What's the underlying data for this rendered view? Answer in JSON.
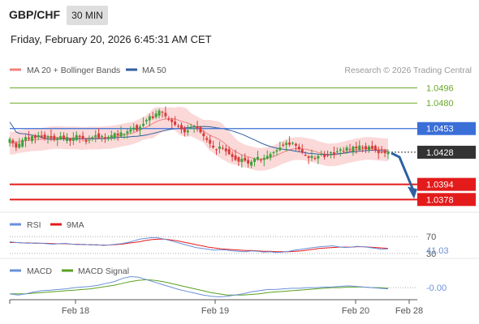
{
  "header": {
    "symbol": "GBP/CHF",
    "timeframe": "30 MIN",
    "timestamp": "Friday, February 20, 2026 6:45:31 AM CET"
  },
  "credit": "Research © 2026 Trading Central",
  "colors": {
    "ma20": "#f08080",
    "band_fill": "#fbd9d9",
    "ma50": "#2f5fa0",
    "resistance": "#6aaa2a",
    "pivot": "#3a6fd8",
    "support": "#e31b1b",
    "current": "#333333",
    "arrow": "#2e5fa2",
    "rsi": "#6a8fd8",
    "rsi_ma": "#e31b1b",
    "macd": "#6a8fd8",
    "macd_signal": "#5aa020"
  },
  "chart_data": [
    {
      "type": "candlestick",
      "name": "price",
      "legend": [
        {
          "label": "MA 20 + Bollinger Bands",
          "color": "#f08080"
        },
        {
          "label": "MA 50",
          "color": "#2f5fa0"
        }
      ],
      "ylim": [
        1.0368,
        1.0505
      ],
      "x_ticks": [
        "Feb 18",
        "Feb 19",
        "Feb 20",
        "Feb 28"
      ],
      "levels": [
        {
          "value": 1.0496,
          "label": "1.0496",
          "kind": "resistance"
        },
        {
          "value": 1.048,
          "label": "1.0480",
          "kind": "resistance"
        },
        {
          "value": 1.0453,
          "label": "1.0453",
          "kind": "pivot"
        },
        {
          "value": 1.0428,
          "label": "1.0428",
          "kind": "current"
        },
        {
          "value": 1.0394,
          "label": "1.0394",
          "kind": "support"
        },
        {
          "value": 1.0378,
          "label": "1.0378",
          "kind": "support"
        }
      ],
      "closes": [
        1.0442,
        1.0438,
        1.0433,
        1.0437,
        1.0441,
        1.0444,
        1.0442,
        1.0445,
        1.0443,
        1.0446,
        1.0444,
        1.0442,
        1.0445,
        1.0443,
        1.0441,
        1.0443,
        1.0445,
        1.0442,
        1.0444,
        1.044,
        1.0443,
        1.0446,
        1.0444,
        1.0442,
        1.0439,
        1.0441,
        1.0444,
        1.0446,
        1.0443,
        1.0445,
        1.0442,
        1.0444,
        1.0446,
        1.0448,
        1.0446,
        1.0449,
        1.0447,
        1.045,
        1.0452,
        1.0454,
        1.0451,
        1.0455,
        1.0458,
        1.0462,
        1.0466,
        1.0464,
        1.0469,
        1.0472,
        1.047,
        1.0466,
        1.0463,
        1.046,
        1.0457,
        1.0455,
        1.0452,
        1.0449,
        1.0451,
        1.0454,
        1.0456,
        1.0453,
        1.0449,
        1.0445,
        1.0441,
        1.0437,
        1.0433,
        1.0431,
        1.0434,
        1.0432,
        1.0429,
        1.0426,
        1.0423,
        1.042,
        1.0418,
        1.0421,
        1.0419,
        1.0416,
        1.0418,
        1.0421,
        1.0423,
        1.042,
        1.0422,
        1.0424,
        1.0426,
        1.0428,
        1.043,
        1.0433,
        1.0435,
        1.0438,
        1.0436,
        1.0438,
        1.0435,
        1.0431,
        1.0428,
        1.0425,
        1.0422,
        1.0424,
        1.0421,
        1.0424,
        1.0426,
        1.0423,
        1.0425,
        1.0428,
        1.0426,
        1.0429,
        1.0431,
        1.0429,
        1.0433,
        1.0431,
        1.0434,
        1.0432,
        1.0435,
        1.0433,
        1.0431,
        1.0434,
        1.0432,
        1.043,
        1.0427,
        1.0428,
        1.0427,
        1.0428
      ],
      "forecast_target": 1.0378
    },
    {
      "type": "line",
      "name": "RSI",
      "legend": [
        {
          "label": "RSI",
          "color": "#6a8fd8"
        },
        {
          "label": "9MA",
          "color": "#e31b1b"
        }
      ],
      "ylim": [
        20,
        80
      ],
      "levels": [
        {
          "value": 70,
          "label": "70"
        },
        {
          "value": 30,
          "label": "30"
        }
      ],
      "current": "41.03",
      "rsi": [
        58,
        56,
        55,
        54,
        55,
        54,
        53,
        52,
        53,
        54,
        52,
        51,
        52,
        50,
        51,
        49,
        50,
        52,
        53,
        56,
        60,
        64,
        66,
        68,
        67,
        64,
        60,
        56,
        52,
        48,
        44,
        42,
        40,
        38,
        39,
        38,
        36,
        35,
        34,
        36,
        35,
        33,
        34,
        32,
        33,
        35,
        38,
        40,
        42,
        44,
        46,
        47,
        48,
        46,
        44,
        45,
        47,
        46,
        44,
        42,
        40,
        41
      ],
      "ma": [
        56,
        56,
        55,
        55,
        54,
        54,
        54,
        53,
        53,
        53,
        52,
        52,
        51,
        51,
        50,
        50,
        50,
        51,
        52,
        54,
        56,
        58,
        61,
        63,
        64,
        64,
        62,
        60,
        57,
        54,
        51,
        48,
        45,
        43,
        41,
        40,
        39,
        38,
        37,
        37,
        36,
        35,
        35,
        34,
        34,
        34,
        35,
        36,
        38,
        40,
        42,
        43,
        44,
        45,
        45,
        45,
        46,
        46,
        45,
        44,
        43,
        42
      ]
    },
    {
      "type": "line",
      "name": "MACD",
      "legend": [
        {
          "label": "MACD",
          "color": "#6a8fd8"
        },
        {
          "label": "MACD Signal",
          "color": "#5aa020"
        }
      ],
      "current": "-0.00",
      "macd": [
        -10,
        -12,
        -10,
        -7,
        -5,
        -4,
        -3,
        -2,
        0,
        1,
        2,
        4,
        7,
        10,
        15,
        18,
        17,
        13,
        9,
        5,
        1,
        -3,
        -6,
        -9,
        -12,
        -14,
        -15,
        -14,
        -12,
        -10,
        -7,
        -5,
        -3,
        -3,
        -2,
        -1,
        -1,
        0,
        0,
        1,
        1,
        2,
        3,
        2,
        1,
        0,
        -1,
        -2
      ],
      "signal": [
        -10,
        -10,
        -10,
        -9,
        -8,
        -7,
        -6,
        -5,
        -4,
        -3,
        -2,
        0,
        2,
        4,
        7,
        10,
        12,
        13,
        12,
        10,
        7,
        4,
        1,
        -2,
        -5,
        -8,
        -10,
        -12,
        -12,
        -12,
        -11,
        -10,
        -8,
        -7,
        -6,
        -5,
        -4,
        -3,
        -2,
        -1,
        0,
        0,
        1,
        1,
        1,
        0,
        0,
        -1
      ]
    }
  ]
}
